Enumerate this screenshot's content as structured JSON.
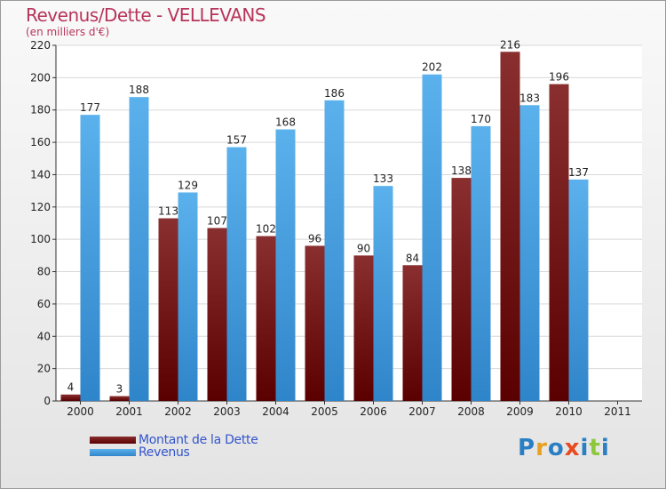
{
  "chart_data": {
    "type": "bar",
    "title": "Revenus/Dette - VELLEVANS",
    "subtitle": "(en milliers d'€)",
    "xlabel": "",
    "ylabel": "",
    "categories": [
      "2000",
      "2001",
      "2002",
      "2003",
      "2004",
      "2005",
      "2006",
      "2007",
      "2008",
      "2009",
      "2010",
      "2011"
    ],
    "series": [
      {
        "name": "Montant de la Dette",
        "color": "#7a1a1a",
        "values": [
          4,
          3,
          113,
          107,
          102,
          96,
          90,
          84,
          138,
          216,
          196,
          null
        ]
      },
      {
        "name": "Revenus",
        "color": "#4aa6e8",
        "values": [
          177,
          188,
          129,
          157,
          168,
          186,
          133,
          202,
          170,
          183,
          137,
          null
        ]
      }
    ],
    "ylim": [
      0,
      220
    ],
    "yticks": [
      0,
      20,
      40,
      60,
      80,
      100,
      120,
      140,
      160,
      180,
      200,
      220
    ],
    "grid": true,
    "legend_position": "bottom-left"
  },
  "logo": {
    "letters": [
      "P",
      "r",
      "o",
      "x",
      "i",
      "t",
      "i"
    ],
    "colors": [
      "#2a7fc4",
      "#e8a020",
      "#2a7fc4",
      "#e84a20",
      "#2a7fc4",
      "#8cc83c",
      "#2a7fc4"
    ]
  }
}
